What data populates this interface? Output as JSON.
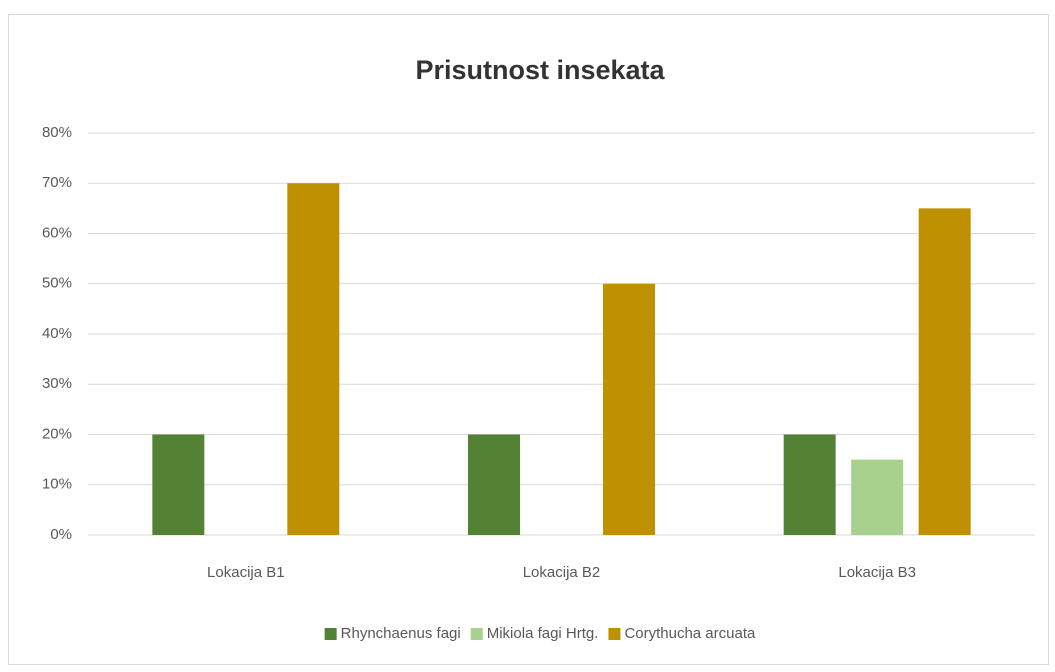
{
  "chart_data": {
    "type": "bar",
    "title": "Prisutnost insekata",
    "categories": [
      "Lokacija B1",
      "Lokacija B2",
      "Lokacija B3"
    ],
    "series": [
      {
        "name": "Rhynchaenus fagi",
        "color": "#548235",
        "values": [
          20,
          20,
          20
        ]
      },
      {
        "name": "Mikiola fagi Hrtg.",
        "color": "#a9d18e",
        "values": [
          0,
          0,
          15
        ]
      },
      {
        "name": "Corythucha arcuata",
        "color": "#bf9000",
        "values": [
          70,
          50,
          65
        ]
      }
    ],
    "ylim": [
      0,
      80
    ],
    "yticks": [
      {
        "value": 0,
        "label": "0%"
      },
      {
        "value": 10,
        "label": "10%"
      },
      {
        "value": 20,
        "label": "20%"
      },
      {
        "value": 30,
        "label": "30%"
      },
      {
        "value": 40,
        "label": "40%"
      },
      {
        "value": 50,
        "label": "50%"
      },
      {
        "value": 60,
        "label": "60%"
      },
      {
        "value": 70,
        "label": "70%"
      },
      {
        "value": 80,
        "label": "80%"
      }
    ],
    "grid": true,
    "legend": "bottom"
  }
}
